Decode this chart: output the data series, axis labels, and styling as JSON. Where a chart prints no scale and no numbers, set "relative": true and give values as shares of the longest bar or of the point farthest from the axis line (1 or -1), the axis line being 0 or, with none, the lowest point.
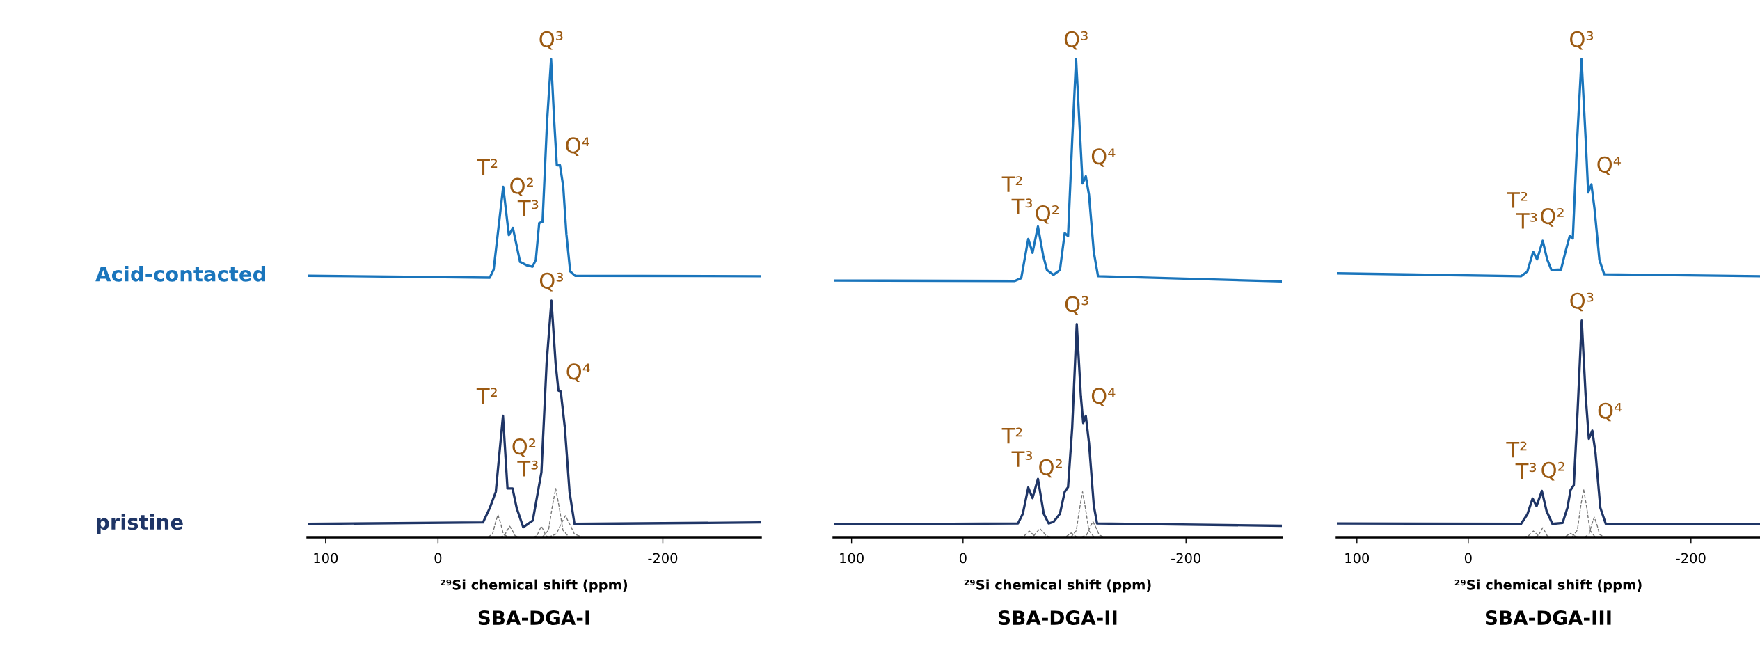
{
  "chart_data": [
    {
      "type": "line",
      "title": "SBA-DGA-I",
      "xlabel": "²⁹Si chemical shift (ppm)",
      "relative": true,
      "tick_labels": "x",
      "legend": false,
      "xlim": [
        116,
        -287
      ],
      "xticks": [
        100,
        0,
        -200
      ],
      "series": [
        {
          "name": "Acid-contacted",
          "color": "#1a75bc",
          "x": [
            116,
            -46,
            -49.5,
            -58,
            -63,
            -66.6,
            -73,
            -78.7,
            -84,
            -87,
            -90,
            -93,
            -97,
            -100.6,
            -103.4,
            -105.7,
            -108.5,
            -111.4,
            -114.2,
            -117.6,
            -122,
            -287
          ],
          "values": [
            0.547,
            0.543,
            0.56,
            0.733,
            0.632,
            0.647,
            0.576,
            0.569,
            0.566,
            0.58,
            0.657,
            0.66,
            0.869,
            1.0,
            0.869,
            0.778,
            0.778,
            0.734,
            0.634,
            0.556,
            0.547,
            0.546
          ]
        },
        {
          "name": "pristine",
          "color": "#1f3566",
          "x": [
            116,
            -40,
            -46,
            -51.4,
            -57.8,
            -61.8,
            -66.3,
            -70,
            -75.8,
            -84.3,
            -92,
            -96.6,
            -100.9,
            -104.6,
            -107.1,
            -109.2,
            -112.8,
            -117,
            -121.4,
            -287
          ],
          "values": [
            0.028,
            0.031,
            0.061,
            0.095,
            0.254,
            0.102,
            0.102,
            0.061,
            0.021,
            0.035,
            0.136,
            0.364,
            0.495,
            0.364,
            0.307,
            0.305,
            0.23,
            0.095,
            0.028,
            0.031
          ]
        },
        {
          "color": "#777777",
          "line_style": "dashed",
          "x": [
            -44.3,
            -48.5,
            -50.9,
            -53.3,
            -55.7,
            -58.1,
            -62.3
          ],
          "values": [
            0,
            0.007,
            0.029,
            0.047,
            0.029,
            0.007,
            0
          ]
        },
        {
          "color": "#777777",
          "line_style": "dashed",
          "x": [
            -54.8,
            -59.0,
            -61.4,
            -63.8,
            -66.2,
            -68.6,
            -72.8
          ],
          "values": [
            0,
            0.003,
            0.014,
            0.023,
            0.014,
            0.003,
            0
          ]
        },
        {
          "color": "#777777",
          "line_style": "dashed",
          "x": [
            -84.5,
            -88,
            -90,
            -92,
            -94,
            -96,
            -99.5
          ],
          "values": [
            0,
            0.003,
            0.014,
            0.023,
            0.014,
            0.003,
            0
          ]
        },
        {
          "color": "#777777",
          "line_style": "dashed",
          "x": [
            -92.7,
            -98.3,
            -101.5,
            -104.7,
            -107.9,
            -111.1,
            -116.7
          ],
          "values": [
            0,
            0.015,
            0.062,
            0.102,
            0.062,
            0.015,
            0
          ]
        },
        {
          "color": "#777777",
          "line_style": "dashed",
          "x": [
            -98.3,
            -105.3,
            -109.3,
            -113.3,
            -117.3,
            -121.3,
            -128.3
          ],
          "values": [
            0,
            0.007,
            0.027,
            0.045,
            0.027,
            0.007,
            0
          ]
        }
      ],
      "annotations": [
        {
          "text": "Q³",
          "x": -100.6,
          "y": 1.0
        },
        {
          "text": "Q⁴",
          "x": -108.5,
          "y": 0.778
        },
        {
          "text": "T²",
          "x": -58,
          "y": 0.733
        },
        {
          "text": "T³",
          "x": -66.6,
          "y": 0.647
        },
        {
          "text": "Q²",
          "x": -90,
          "y": 0.657
        },
        {
          "text": "Q³",
          "x": -100.9,
          "y": 0.495
        },
        {
          "text": "Q⁴",
          "x": -109.2,
          "y": 0.305
        },
        {
          "text": "T²",
          "x": -57.8,
          "y": 0.254
        },
        {
          "text": "T³",
          "x": -66.3,
          "y": 0.102
        },
        {
          "text": "Q²",
          "x": -92,
          "y": 0.136
        }
      ]
    },
    {
      "type": "line",
      "title": "SBA-DGA-II",
      "xlabel": "²⁹Si chemical shift (ppm)",
      "relative": true,
      "tick_labels": "x",
      "legend": false,
      "xlim": [
        116,
        -286
      ],
      "xticks": [
        100,
        0,
        -200
      ],
      "series": [
        {
          "color": "#1a75bc",
          "x": [
            116,
            -46.4,
            -52.2,
            -58.5,
            -62.3,
            -67.2,
            -71.9,
            -75.3,
            -81.1,
            -86.9,
            -91.2,
            -94.2,
            -97.9,
            -101.4,
            -105.2,
            -107.2,
            -110.1,
            -113,
            -117.3,
            -121.1,
            -286
          ],
          "values": [
            0.537,
            0.536,
            0.542,
            0.624,
            0.595,
            0.65,
            0.589,
            0.559,
            0.549,
            0.559,
            0.636,
            0.63,
            0.83,
            1.0,
            0.83,
            0.74,
            0.755,
            0.716,
            0.596,
            0.546,
            0.535
          ]
        },
        {
          "color": "#1f3566",
          "x": [
            116,
            -49.3,
            -53.6,
            -58.5,
            -62.3,
            -67.2,
            -72.4,
            -76.8,
            -81.1,
            -86.9,
            -91.2,
            -94.2,
            -97.9,
            -102,
            -105.7,
            -107.8,
            -110.1,
            -113,
            -117.3,
            -120.2,
            -286
          ],
          "values": [
            0.027,
            0.029,
            0.049,
            0.104,
            0.082,
            0.122,
            0.049,
            0.029,
            0.032,
            0.049,
            0.095,
            0.105,
            0.229,
            0.446,
            0.294,
            0.239,
            0.254,
            0.197,
            0.066,
            0.029,
            0.024
          ]
        },
        {
          "color": "#777777",
          "line_style": "dashed",
          "x": [
            -50.4,
            -54.6,
            -57,
            -59.4,
            -61.8,
            -64.2,
            -68.4
          ],
          "values": [
            0,
            0.002,
            0.008,
            0.013,
            0.008,
            0.002,
            0
          ]
        },
        {
          "color": "#777777",
          "line_style": "dashed",
          "x": [
            -58.5,
            -63.4,
            -66.2,
            -69,
            -71.8,
            -74.6,
            -79.5
          ],
          "values": [
            0,
            0.003,
            0.011,
            0.018,
            0.011,
            0.003,
            0
          ]
        },
        {
          "color": "#777777",
          "line_style": "dashed",
          "x": [
            -88,
            -92.2,
            -94.6,
            -97,
            -99.4,
            -101.8,
            -106
          ],
          "values": [
            0,
            0.001,
            0.005,
            0.009,
            0.005,
            0.001,
            0
          ]
        },
        {
          "color": "#777777",
          "line_style": "dashed",
          "x": [
            -96.7,
            -101.6,
            -104.4,
            -107.2,
            -110,
            -112.8,
            -117.7
          ],
          "values": [
            0,
            0.014,
            0.058,
            0.095,
            0.058,
            0.014,
            0
          ]
        },
        {
          "color": "#777777",
          "line_style": "dashed",
          "x": [
            -106,
            -110.9,
            -113.7,
            -116.5,
            -119.3,
            -122.1,
            -127
          ],
          "values": [
            0,
            0.005,
            0.02,
            0.033,
            0.02,
            0.005,
            0
          ]
        }
      ],
      "annotations": [
        {
          "text": "Q³",
          "x": -101.4,
          "y": 1.0
        },
        {
          "text": "Q⁴",
          "x": -110.1,
          "y": 0.755
        },
        {
          "text": "T³",
          "x": -67.2,
          "y": 0.65
        },
        {
          "text": "Q²",
          "x": -91.2,
          "y": 0.636
        },
        {
          "text": "T²",
          "x": -58.5,
          "y": 0.624
        },
        {
          "text": "Q³",
          "x": -102,
          "y": 0.446
        },
        {
          "text": "Q⁴",
          "x": -110.1,
          "y": 0.254
        },
        {
          "text": "T³",
          "x": -67.2,
          "y": 0.122
        },
        {
          "text": "T²",
          "x": -58.5,
          "y": 0.104
        },
        {
          "text": "Q²",
          "x": -94.2,
          "y": 0.105
        }
      ]
    },
    {
      "type": "line",
      "title": "SBA-DGA-III",
      "xlabel": "²⁹Si chemical shift (ppm)",
      "relative": true,
      "tick_labels": "x",
      "legend": false,
      "xlim": [
        118,
        -262
      ],
      "xticks": [
        100,
        0,
        -200
      ],
      "series": [
        {
          "color": "#1a75bc",
          "x": [
            117.8,
            -47.4,
            -53.1,
            -58.3,
            -61.8,
            -66.9,
            -70.9,
            -74.7,
            -83.3,
            -87.6,
            -91.1,
            -93.9,
            -97.9,
            -101.7,
            -105.4,
            -107.7,
            -110.6,
            -113.4,
            -117.8,
            -122.1,
            -262
          ],
          "values": [
            0.552,
            0.546,
            0.556,
            0.597,
            0.581,
            0.62,
            0.581,
            0.559,
            0.56,
            0.6,
            0.63,
            0.625,
            0.835,
            1.0,
            0.835,
            0.721,
            0.738,
            0.687,
            0.58,
            0.55,
            0.546
          ]
        },
        {
          "color": "#1f3566",
          "x": [
            117.8,
            -47.4,
            -53.1,
            -57.8,
            -61.3,
            -66.1,
            -70.3,
            -75.6,
            -84.7,
            -89.1,
            -91.9,
            -94.8,
            -98.2,
            -101.9,
            -105.4,
            -108.3,
            -111.4,
            -114.3,
            -118.6,
            -123.5,
            -262
          ],
          "values": [
            0.029,
            0.028,
            0.048,
            0.081,
            0.065,
            0.097,
            0.055,
            0.028,
            0.03,
            0.062,
            0.099,
            0.109,
            0.264,
            0.453,
            0.297,
            0.206,
            0.223,
            0.176,
            0.062,
            0.028,
            0.027
          ]
        },
        {
          "color": "#777777",
          "line_style": "dashed",
          "x": [
            -49.5,
            -53.7,
            -56.1,
            -58.5,
            -60.9,
            -63.3,
            -67.5
          ],
          "values": [
            0,
            0.002,
            0.008,
            0.013,
            0.008,
            0.002,
            0
          ]
        },
        {
          "color": "#777777",
          "line_style": "dashed",
          "x": [
            -59.4,
            -62.9,
            -64.9,
            -66.9,
            -68.9,
            -70.9,
            -74.4
          ],
          "values": [
            0,
            0.003,
            0.012,
            0.02,
            0.012,
            0.003,
            0
          ]
        },
        {
          "color": "#777777",
          "line_style": "dashed",
          "x": [
            -82.9,
            -87.1,
            -89.5,
            -91.9,
            -94.3,
            -96.7,
            -100.9
          ],
          "values": [
            0,
            0.001,
            0.005,
            0.008,
            0.005,
            0.001,
            0
          ]
        },
        {
          "color": "#777777",
          "line_style": "dashed",
          "x": [
            -93.1,
            -98,
            -100.8,
            -103.6,
            -106.4,
            -109.2,
            -114.1
          ],
          "values": [
            0,
            0.015,
            0.062,
            0.101,
            0.062,
            0.015,
            0
          ]
        },
        {
          "color": "#777777",
          "line_style": "dashed",
          "x": [
            -104.2,
            -108.4,
            -110.8,
            -113.2,
            -115.6,
            -118,
            -122.2
          ],
          "values": [
            0,
            0.006,
            0.026,
            0.042,
            0.026,
            0.006,
            0
          ]
        }
      ],
      "annotations": [
        {
          "text": "Q³",
          "x": -101.7,
          "y": 1.0
        },
        {
          "text": "Q⁴",
          "x": -110.6,
          "y": 0.738
        },
        {
          "text": "T³",
          "x": -66.9,
          "y": 0.62
        },
        {
          "text": "Q²",
          "x": -91.1,
          "y": 0.63
        },
        {
          "text": "T²",
          "x": -58.3,
          "y": 0.597
        },
        {
          "text": "Q³",
          "x": -101.9,
          "y": 0.453
        },
        {
          "text": "Q⁴",
          "x": -111.4,
          "y": 0.223
        },
        {
          "text": "T³",
          "x": -66.1,
          "y": 0.097
        },
        {
          "text": "Q²",
          "x": -91.9,
          "y": 0.099
        },
        {
          "text": "T²",
          "x": -57.8,
          "y": 0.081
        }
      ]
    }
  ]
}
